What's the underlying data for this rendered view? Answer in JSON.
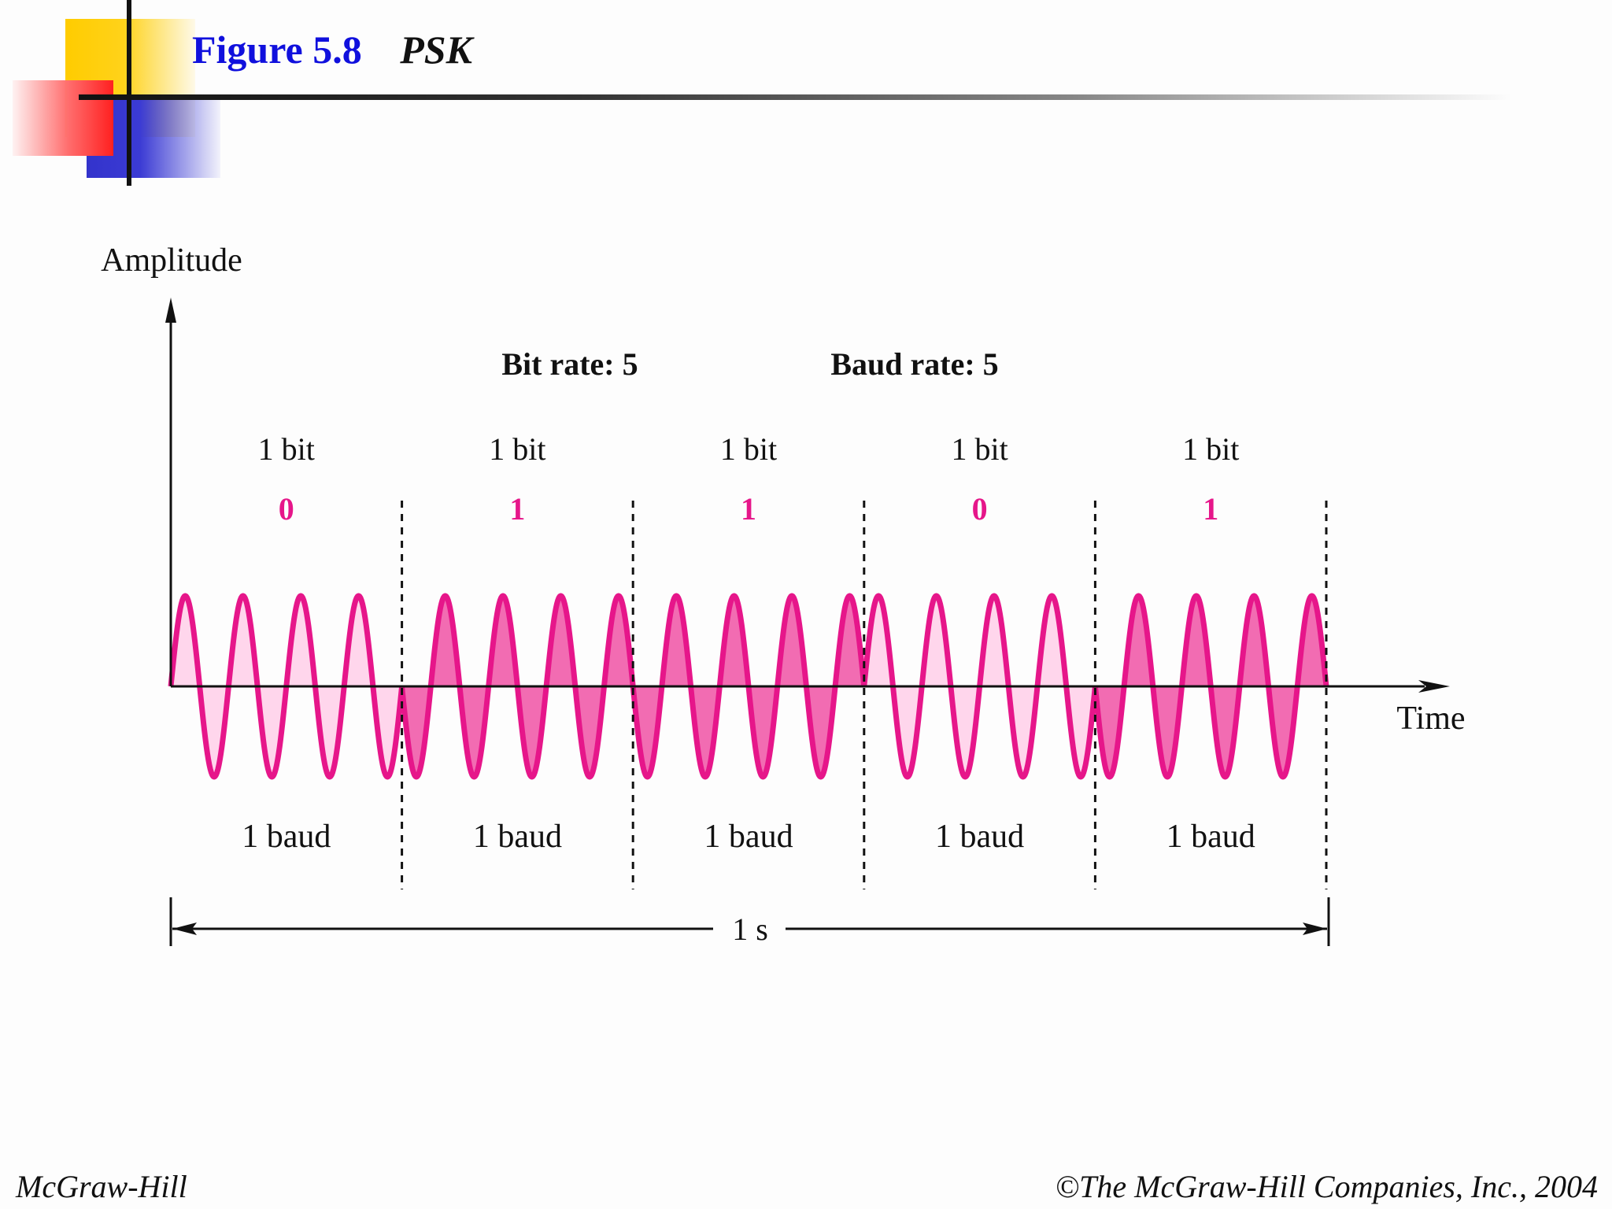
{
  "slide": {
    "figure_number": "Figure 5.8",
    "figure_name": "PSK",
    "footer_left": "McGraw-Hill",
    "footer_right": "©The McGraw-Hill Companies, Inc., 2004"
  },
  "diagram": {
    "y_axis_label": "Amplitude",
    "x_axis_label": "Time",
    "bit_rate_label": "Bit rate: 5",
    "baud_rate_label": "Baud rate: 5",
    "duration_label": "1 s",
    "cycles_per_bit": 4,
    "signal_color": "#e6168a",
    "signal_fill_light": "#ffd6ec",
    "signal_fill_dark": "#f26cb2",
    "segments": [
      {
        "bit_label": "1 bit",
        "value": "0",
        "baud_label": "1 baud",
        "phase_degrees": 0
      },
      {
        "bit_label": "1 bit",
        "value": "1",
        "baud_label": "1 baud",
        "phase_degrees": 180
      },
      {
        "bit_label": "1 bit",
        "value": "1",
        "baud_label": "1 baud",
        "phase_degrees": 180
      },
      {
        "bit_label": "1 bit",
        "value": "0",
        "baud_label": "1 baud",
        "phase_degrees": 0
      },
      {
        "bit_label": "1 bit",
        "value": "1",
        "baud_label": "1 baud",
        "phase_degrees": 180
      }
    ]
  }
}
